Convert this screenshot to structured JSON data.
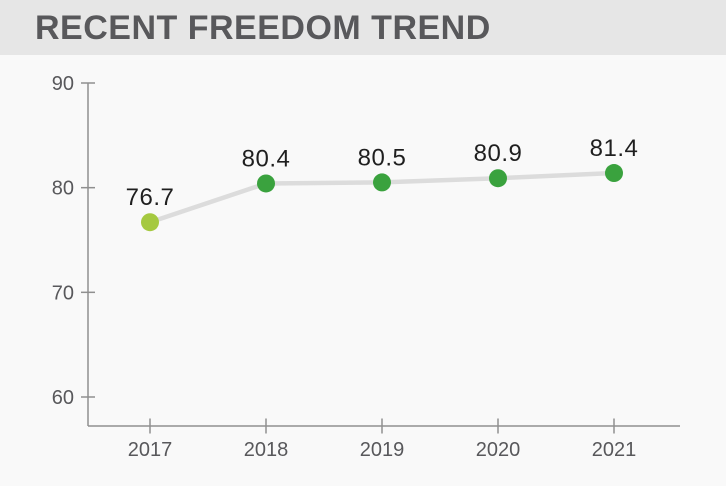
{
  "title": "RECENT FREEDOM TREND",
  "chart_data": {
    "type": "line",
    "title": "RECENT FREEDOM TREND",
    "categories": [
      "2017",
      "2018",
      "2019",
      "2020",
      "2021"
    ],
    "values": [
      76.7,
      80.4,
      80.5,
      80.9,
      81.4
    ],
    "point_labels": [
      "76.7",
      "80.4",
      "80.5",
      "80.9",
      "81.4"
    ],
    "yticks": [
      90,
      80,
      70,
      60
    ],
    "ylim": [
      60,
      90
    ],
    "xlabel": "",
    "ylabel": "",
    "grid": false,
    "legend": "none",
    "colors": {
      "point_first": "#a5c940",
      "point_rest": "#3aa23e",
      "trend_line": "#dcdcdc",
      "axis": "#8f8f8f",
      "tick_label": "#58585b",
      "data_label": "#1f1f1f",
      "title_text": "#58585b",
      "title_band": "#e6e6e6",
      "background": "#f9f9f9"
    }
  }
}
